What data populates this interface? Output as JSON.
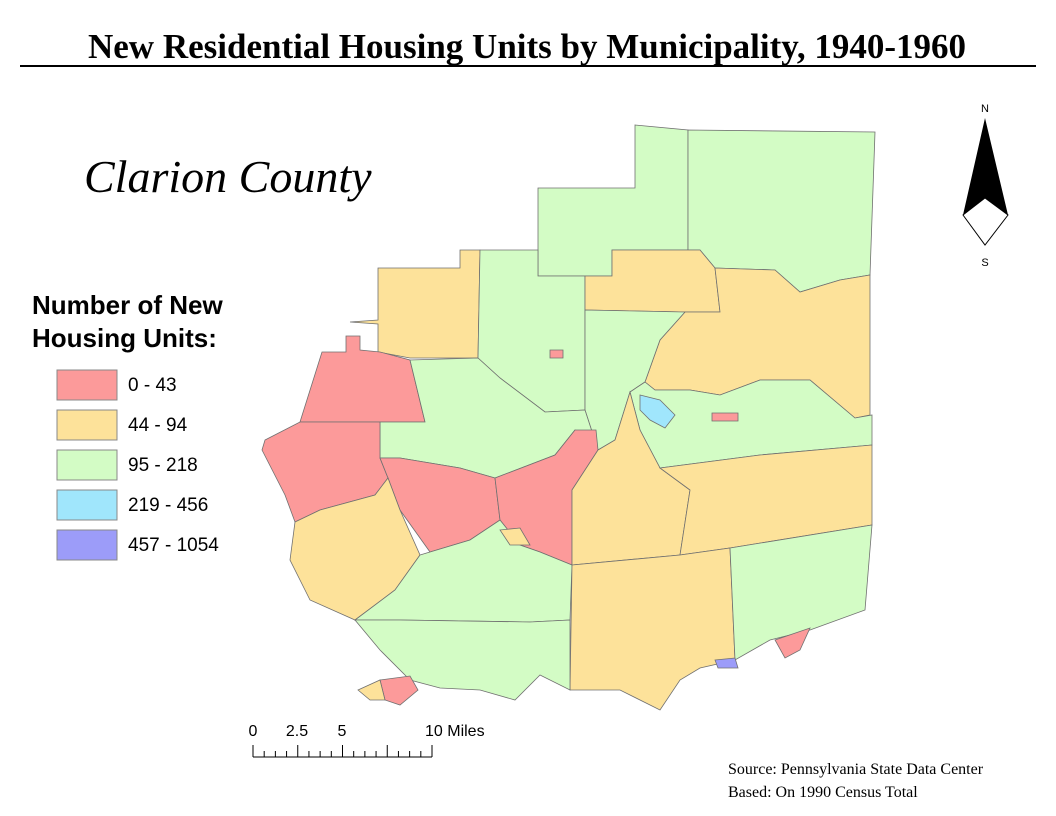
{
  "title": "New Residential Housing Units by Municipality, 1940-1960",
  "map_title": "Clarion County",
  "legend": {
    "title_lines": [
      "Number of New",
      "Housing Units:"
    ],
    "items": [
      {
        "label": "0 - 43",
        "color": "#fc9a9a"
      },
      {
        "label": "44 - 94",
        "color": "#fde29a"
      },
      {
        "label": "95 - 218",
        "color": "#d3fcc5"
      },
      {
        "label": "219 - 456",
        "color": "#a0e6fc"
      },
      {
        "label": "457 - 1054",
        "color": "#9c9cf9"
      }
    ]
  },
  "scale_bar": {
    "labels": [
      "0",
      "2.5",
      "5",
      "10 Miles"
    ]
  },
  "north_arrow": {
    "north": "N",
    "south": "S"
  },
  "source": [
    "Source: Pennsylvania State Data Center",
    "Based: On 1990 Census Total"
  ]
}
